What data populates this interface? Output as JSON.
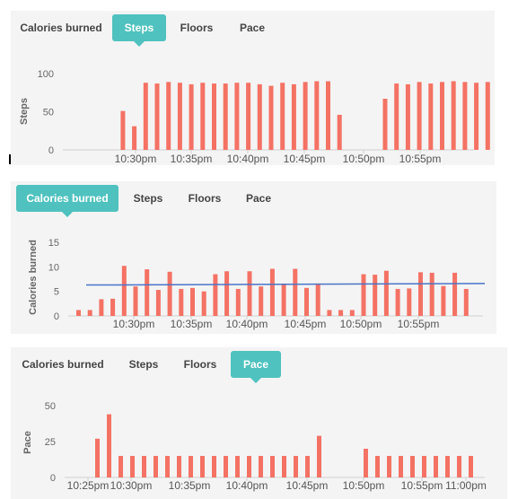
{
  "panels": [
    {
      "id": "steps",
      "tabs": [
        "Calories burned",
        "Steps",
        "Floors",
        "Pace"
      ],
      "active_tab": 1,
      "accent": "#4fc2bf"
    },
    {
      "id": "calories",
      "tabs": [
        "Calories burned",
        "Steps",
        "Floors",
        "Pace"
      ],
      "active_tab": 0,
      "accent": "#4fc2bf"
    },
    {
      "id": "pace",
      "tabs": [
        "Calories burned",
        "Steps",
        "Floors",
        "Pace"
      ],
      "active_tab": 3,
      "accent": "#4fc2bf"
    }
  ],
  "chart_data": [
    {
      "type": "bar",
      "ylabel": "Steps",
      "yticks": [
        0,
        50,
        100
      ],
      "ylim": [
        0,
        100
      ],
      "xticks": [
        "10:30pm",
        "10:35pm",
        "10:40pm",
        "10:45pm",
        "10:50pm",
        "10:55pm"
      ],
      "bar_color": "#f47264",
      "values": [
        null,
        null,
        51,
        31,
        88,
        87,
        89,
        88,
        86,
        88,
        87,
        87,
        88,
        88,
        86,
        84,
        88,
        86,
        89,
        90,
        90,
        46,
        null,
        null,
        null,
        67,
        87,
        86,
        89,
        87,
        89,
        90,
        89,
        88,
        89
      ]
    },
    {
      "type": "bar",
      "ylabel": "Calories burned",
      "yticks": [
        0,
        5,
        10,
        15
      ],
      "ylim": [
        0,
        15
      ],
      "xticks": [
        "10:30pm",
        "10:35pm",
        "10:40pm",
        "10:45pm",
        "10:50pm",
        "10:55pm"
      ],
      "bar_color": "#f47264",
      "line_color": "#4a74c9",
      "trend": [
        6.3,
        6.6
      ],
      "values": [
        1.2,
        1.2,
        3.4,
        3.5,
        10.2,
        6.0,
        9.5,
        5.3,
        9.0,
        5.5,
        5.7,
        5.0,
        8.5,
        9.1,
        5.5,
        9.1,
        6.0,
        9.6,
        6.6,
        9.6,
        5.7,
        6.6,
        1.2,
        1.2,
        1.2,
        8.5,
        8.4,
        9.2,
        5.5,
        5.6,
        8.9,
        8.8,
        6.1,
        8.8,
        5.5
      ]
    },
    {
      "type": "bar",
      "ylabel": "Pace",
      "yticks": [
        0,
        25,
        50
      ],
      "ylim": [
        0,
        50
      ],
      "xticks": [
        "10:25pm",
        "10:30pm",
        "10:35pm",
        "10:40pm",
        "10:45pm",
        "10:50pm",
        "10:55pm",
        "11:00pm"
      ],
      "bar_color": "#f47264",
      "values": [
        null,
        null,
        27,
        44,
        15,
        15,
        15,
        15,
        15,
        15,
        15,
        15,
        15,
        15,
        15,
        15,
        15,
        15,
        15,
        15,
        15,
        29,
        null,
        null,
        null,
        20,
        15,
        15,
        15,
        15,
        15,
        15,
        15,
        15,
        15
      ]
    }
  ]
}
